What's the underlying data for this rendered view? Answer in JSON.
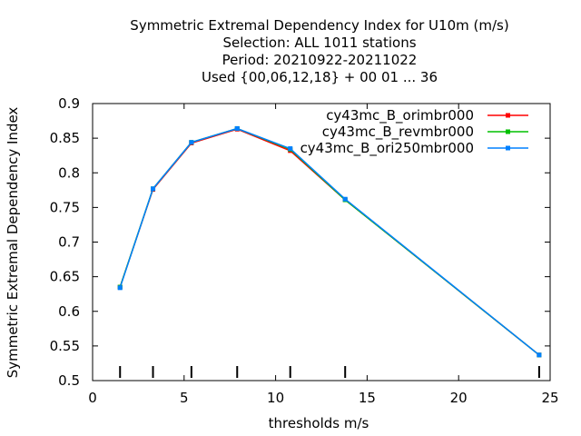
{
  "chart_data": {
    "type": "line",
    "title": [
      "Symmetric Extremal Dependency Index  for U10m (m/s)",
      "Selection: ALL   1011 stations",
      "Period: 20210922-20211022",
      "Used {00,06,12,18} + 00 01 ... 36"
    ],
    "xlabel": "thresholds m/s",
    "ylabel": "Symmetric Extremal Dependency Index",
    "xlim": [
      0,
      25
    ],
    "ylim": [
      0.5,
      0.9
    ],
    "xticks": [
      0,
      5,
      10,
      15,
      20,
      25
    ],
    "xtick_labels": [
      "0",
      "5",
      "10",
      "15",
      "20",
      "25"
    ],
    "yticks": [
      0.5,
      0.55,
      0.6,
      0.65,
      0.7,
      0.75,
      0.8,
      0.85,
      0.9
    ],
    "ytick_labels": [
      "0.5",
      "0.55",
      "0.6",
      "0.65",
      "0.7",
      "0.75",
      "0.8",
      "0.85",
      "0.9"
    ],
    "legend_position": "top-right",
    "grid": false,
    "threshold_markers": [
      1.5,
      3.3,
      5.4,
      7.9,
      10.8,
      13.8,
      24.4
    ],
    "series": [
      {
        "name": "cy43mc_B_orimbr000",
        "color": "#ff0000",
        "x": [
          1.5,
          3.3,
          5.4,
          7.9,
          10.8,
          13.8,
          24.4
        ],
        "y": [
          0.635,
          0.776,
          0.843,
          0.863,
          0.832,
          0.761,
          0.537
        ]
      },
      {
        "name": "cy43mc_B_revmbr000",
        "color": "#00c000",
        "x": [
          1.5,
          3.3,
          5.4,
          7.9,
          10.8,
          13.8,
          24.4
        ],
        "y": [
          0.635,
          0.777,
          0.844,
          0.864,
          0.834,
          0.761,
          0.537
        ]
      },
      {
        "name": "cy43mc_B_ori250mbr000",
        "color": "#0080ff",
        "x": [
          1.5,
          3.3,
          5.4,
          7.9,
          10.8,
          13.8,
          24.4
        ],
        "y": [
          0.634,
          0.777,
          0.844,
          0.864,
          0.835,
          0.762,
          0.537
        ]
      }
    ]
  }
}
